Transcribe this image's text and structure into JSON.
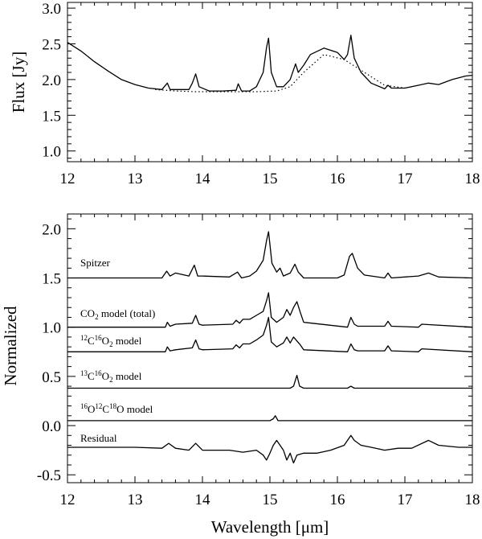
{
  "chart_data": [
    {
      "type": "line",
      "panel": "top",
      "ylabel": "Flux [Jy]",
      "xlabel": "",
      "xlim": [
        12,
        18
      ],
      "ylim": [
        0.85,
        3.08
      ],
      "xticks": [
        "12",
        "13",
        "14",
        "15",
        "16",
        "17",
        "18"
      ],
      "yticks": [
        "1.0",
        "1.5",
        "2.0",
        "2.5",
        "3.0"
      ],
      "series": [
        {
          "style": "solid",
          "x": [
            12.0,
            12.2,
            12.4,
            12.6,
            12.8,
            13.0,
            13.2,
            13.4,
            13.48,
            13.52,
            13.6,
            13.8,
            13.85,
            13.9,
            13.95,
            14.1,
            14.3,
            14.5,
            14.53,
            14.58,
            14.7,
            14.8,
            14.9,
            14.95,
            14.98,
            15.02,
            15.1,
            15.2,
            15.3,
            15.38,
            15.42,
            15.5,
            15.6,
            15.8,
            16.0,
            16.1,
            16.15,
            16.2,
            16.25,
            16.35,
            16.5,
            16.7,
            16.75,
            16.8,
            17.0,
            17.2,
            17.35,
            17.5,
            17.7,
            17.9,
            18.0
          ],
          "y": [
            2.52,
            2.4,
            2.25,
            2.12,
            2.0,
            1.93,
            1.88,
            1.86,
            1.95,
            1.86,
            1.86,
            1.86,
            1.95,
            2.08,
            1.9,
            1.84,
            1.84,
            1.85,
            1.94,
            1.84,
            1.84,
            1.9,
            2.1,
            2.45,
            2.58,
            2.1,
            1.9,
            1.9,
            2.0,
            2.22,
            2.1,
            2.2,
            2.35,
            2.44,
            2.38,
            2.28,
            2.35,
            2.62,
            2.3,
            2.1,
            1.95,
            1.87,
            1.92,
            1.88,
            1.88,
            1.92,
            1.95,
            1.93,
            2.0,
            2.05,
            2.06
          ]
        },
        {
          "style": "dotted",
          "x": [
            13.3,
            13.6,
            13.9,
            14.2,
            14.5,
            14.8,
            15.1,
            15.3,
            15.5,
            15.8,
            16.1,
            16.4,
            16.7,
            17.0
          ],
          "y": [
            1.86,
            1.84,
            1.83,
            1.83,
            1.83,
            1.83,
            1.84,
            1.9,
            2.1,
            2.35,
            2.28,
            2.1,
            1.92,
            1.88
          ]
        }
      ]
    },
    {
      "type": "line",
      "panel": "bottom",
      "ylabel": "Normalized",
      "xlabel": "Wavelength [μm]",
      "xlim": [
        12,
        18
      ],
      "ylim": [
        -0.58,
        2.15
      ],
      "xticks": [
        "12",
        "13",
        "14",
        "15",
        "16",
        "17",
        "18"
      ],
      "yticks": [
        "-0.5",
        "0.0",
        "0.5",
        "1.0",
        "1.5",
        "2.0"
      ],
      "series": [
        {
          "label": "Spitzer",
          "baseline": 1.5,
          "x": [
            12.0,
            13.4,
            13.47,
            13.52,
            13.6,
            13.8,
            13.88,
            13.93,
            14.0,
            14.4,
            14.52,
            14.58,
            14.7,
            14.8,
            14.9,
            14.95,
            14.98,
            15.03,
            15.1,
            15.15,
            15.2,
            15.3,
            15.37,
            15.42,
            15.5,
            16.0,
            16.1,
            16.18,
            16.22,
            16.3,
            16.4,
            16.7,
            16.75,
            16.8,
            17.2,
            17.35,
            17.5,
            18.0
          ],
          "y": [
            1.5,
            1.5,
            1.57,
            1.52,
            1.55,
            1.52,
            1.63,
            1.52,
            1.52,
            1.51,
            1.56,
            1.5,
            1.52,
            1.57,
            1.68,
            1.88,
            1.97,
            1.65,
            1.56,
            1.6,
            1.52,
            1.55,
            1.64,
            1.56,
            1.5,
            1.5,
            1.53,
            1.72,
            1.75,
            1.6,
            1.53,
            1.5,
            1.55,
            1.5,
            1.52,
            1.55,
            1.51,
            1.5
          ]
        },
        {
          "label": "CO2 model (total)",
          "baseline": 1.0,
          "x": [
            12.0,
            13.45,
            13.48,
            13.52,
            13.6,
            13.85,
            13.9,
            13.95,
            14.0,
            14.45,
            14.5,
            14.55,
            14.6,
            14.7,
            14.8,
            14.9,
            14.95,
            14.98,
            15.02,
            15.1,
            15.2,
            15.25,
            15.3,
            15.35,
            15.4,
            15.45,
            15.5,
            16.15,
            16.2,
            16.25,
            16.3,
            16.7,
            16.75,
            16.8,
            17.2,
            17.25,
            18.0
          ],
          "y": [
            1.0,
            1.0,
            1.05,
            1.01,
            1.03,
            1.04,
            1.12,
            1.03,
            1.02,
            1.03,
            1.07,
            1.04,
            1.08,
            1.08,
            1.12,
            1.16,
            1.27,
            1.35,
            1.1,
            1.05,
            1.1,
            1.18,
            1.12,
            1.2,
            1.26,
            1.15,
            1.05,
            1.0,
            1.1,
            1.03,
            1.01,
            1.01,
            1.06,
            1.01,
            1.0,
            1.03,
            1.0
          ]
        },
        {
          "label": "12C16O2 model",
          "baseline": 0.75,
          "x": [
            12.0,
            13.45,
            13.48,
            13.52,
            13.6,
            13.85,
            13.9,
            13.95,
            14.0,
            14.45,
            14.5,
            14.55,
            14.6,
            14.7,
            14.8,
            14.9,
            14.95,
            14.98,
            15.02,
            15.1,
            15.2,
            15.25,
            15.3,
            15.35,
            15.4,
            15.45,
            15.5,
            16.15,
            16.2,
            16.25,
            16.3,
            16.7,
            16.75,
            16.8,
            17.2,
            17.25,
            18.0
          ],
          "y": [
            0.75,
            0.75,
            0.8,
            0.76,
            0.77,
            0.79,
            0.87,
            0.78,
            0.77,
            0.78,
            0.82,
            0.79,
            0.83,
            0.83,
            0.87,
            0.92,
            1.02,
            1.1,
            0.85,
            0.8,
            0.84,
            0.9,
            0.84,
            0.9,
            0.86,
            0.82,
            0.77,
            0.75,
            0.83,
            0.77,
            0.76,
            0.76,
            0.81,
            0.76,
            0.75,
            0.78,
            0.75
          ]
        },
        {
          "label": "13C16O2 model",
          "baseline": 0.38,
          "x": [
            12.0,
            15.3,
            15.35,
            15.4,
            15.44,
            15.5,
            16.15,
            16.2,
            16.25,
            18.0
          ],
          "y": [
            0.38,
            0.38,
            0.4,
            0.51,
            0.4,
            0.38,
            0.38,
            0.4,
            0.38,
            0.38
          ]
        },
        {
          "label": "16O12C18O model",
          "baseline": 0.05,
          "x": [
            12.0,
            15.0,
            15.05,
            15.08,
            15.12,
            18.0
          ],
          "y": [
            0.05,
            0.05,
            0.07,
            0.1,
            0.05,
            0.05
          ]
        },
        {
          "label": "Residual",
          "baseline": -0.22,
          "x": [
            12.0,
            13.0,
            13.4,
            13.5,
            13.6,
            13.8,
            13.9,
            14.0,
            14.2,
            14.4,
            14.6,
            14.8,
            14.9,
            14.95,
            15.0,
            15.05,
            15.1,
            15.2,
            15.25,
            15.3,
            15.35,
            15.4,
            15.5,
            15.7,
            15.9,
            16.1,
            16.2,
            16.25,
            16.35,
            16.5,
            16.7,
            16.9,
            17.1,
            17.35,
            17.5,
            17.8,
            18.0
          ],
          "y": [
            -0.22,
            -0.22,
            -0.23,
            -0.18,
            -0.23,
            -0.25,
            -0.18,
            -0.25,
            -0.25,
            -0.25,
            -0.27,
            -0.25,
            -0.3,
            -0.35,
            -0.28,
            -0.2,
            -0.15,
            -0.25,
            -0.35,
            -0.28,
            -0.38,
            -0.3,
            -0.28,
            -0.28,
            -0.25,
            -0.2,
            -0.1,
            -0.15,
            -0.2,
            -0.22,
            -0.25,
            -0.23,
            -0.23,
            -0.15,
            -0.2,
            -0.22,
            -0.22
          ]
        }
      ]
    }
  ],
  "labels": {
    "spitzer": "Spitzer",
    "co2_a": "CO",
    "co2_sub": "2",
    "co2_b": " model (total)",
    "c12_sup1": "12",
    "c12_main1": "C",
    "c12_sup2": "16",
    "c12_main2": "O",
    "c12_sub": "2",
    "c12_tail": " model",
    "c13_sup1": "13",
    "c13_main1": "C",
    "c13_sup2": "16",
    "c13_main2": "O",
    "c13_sub": "2",
    "c13_tail": " model",
    "o16_sup1": "16",
    "o16_main1": "O",
    "o16_sup2": "12",
    "o16_main2": "C",
    "o16_sup3": "18",
    "o16_main3": "O model",
    "residual": "Residual"
  }
}
